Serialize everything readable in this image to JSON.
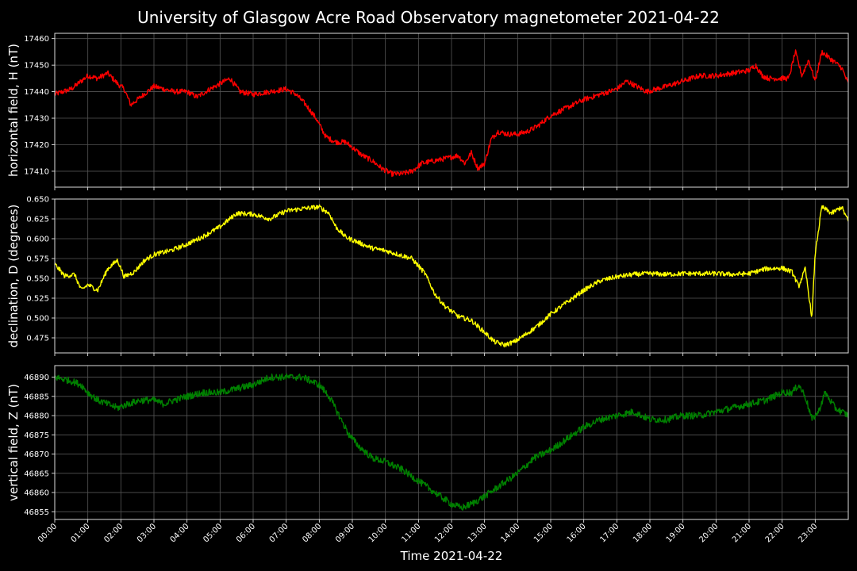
{
  "chart_data": {
    "title": "University of Glasgow Acre Road Observatory magnetometer 2021-04-22",
    "xlabel": "Time 2021-04-22",
    "x_ticks": [
      "00:00",
      "01:00",
      "02:00",
      "03:00",
      "04:00",
      "05:00",
      "06:00",
      "07:00",
      "08:00",
      "09:00",
      "10:00",
      "11:00",
      "12:00",
      "13:00",
      "14:00",
      "15:00",
      "16:00",
      "17:00",
      "18:00",
      "19:00",
      "20:00",
      "21:00",
      "22:00",
      "23:00"
    ],
    "grid": true,
    "panels": [
      {
        "type": "line",
        "ylabel": "horizontal field, H (nT)",
        "color": "#ff0000",
        "ylim": [
          17404,
          17462
        ],
        "y_ticks": [
          "17410",
          "17420",
          "17430",
          "17440",
          "17450",
          "17460"
        ],
        "noise": 1.0,
        "x": [
          0,
          0.5,
          1,
          1.3,
          1.6,
          1.9,
          2.1,
          2.3,
          2.6,
          3,
          3.3,
          3.6,
          4,
          4.3,
          4.7,
          5,
          5.3,
          5.6,
          6,
          6.5,
          7,
          7.3,
          7.6,
          7.9,
          8.2,
          8.5,
          8.8,
          9,
          9.3,
          9.6,
          9.9,
          10.2,
          10.5,
          10.8,
          11.1,
          11.5,
          11.9,
          12.2,
          12.4,
          12.6,
          12.8,
          13,
          13.2,
          13.4,
          13.7,
          14,
          14.3,
          14.6,
          15,
          15.5,
          16,
          16.5,
          17,
          17.3,
          17.6,
          17.9,
          18.2,
          18.5,
          19,
          19.5,
          20,
          20.5,
          21,
          21.2,
          21.4,
          21.6,
          21.9,
          22.2,
          22.4,
          22.6,
          22.8,
          23,
          23.2,
          23.5,
          23.8,
          24
        ],
        "y": [
          17439,
          17441,
          17446,
          17445,
          17447,
          17443,
          17441,
          17435,
          17438,
          17442,
          17441,
          17440,
          17440,
          17438,
          17441,
          17443,
          17445,
          17440,
          17439,
          17440,
          17441,
          17439,
          17435,
          17430,
          17423,
          17421,
          17421,
          17419,
          17416,
          17414,
          17411,
          17409,
          17409,
          17410,
          17413,
          17414,
          17415,
          17416,
          17413,
          17417,
          17411,
          17413,
          17422,
          17425,
          17424,
          17424,
          17425,
          17427,
          17431,
          17434,
          17437,
          17439,
          17441,
          17444,
          17442,
          17440,
          17441,
          17442,
          17444,
          17446,
          17446,
          17447,
          17448,
          17450,
          17446,
          17445,
          17445,
          17445,
          17455,
          17446,
          17452,
          17444,
          17455,
          17452,
          17449,
          17443
        ]
      },
      {
        "type": "line",
        "ylabel": "declination, D (degrees)",
        "color": "#ffff00",
        "ylim": [
          0.456,
          0.65
        ],
        "y_ticks": [
          "0.475",
          "0.500",
          "0.525",
          "0.550",
          "0.575",
          "0.600",
          "0.625",
          "0.650"
        ],
        "noise": 0.003,
        "x": [
          0,
          0.3,
          0.6,
          0.8,
          1,
          1.3,
          1.6,
          1.9,
          2.1,
          2.4,
          2.7,
          3,
          3.5,
          4,
          4.5,
          5,
          5.5,
          6,
          6.5,
          7,
          7.5,
          8,
          8.3,
          8.5,
          8.8,
          9.2,
          9.6,
          10,
          10.4,
          10.8,
          11.2,
          11.5,
          11.8,
          12.2,
          12.6,
          13,
          13.3,
          13.6,
          13.9,
          14.2,
          14.6,
          15,
          15.5,
          16,
          16.5,
          17,
          17.5,
          18,
          18.5,
          19,
          19.5,
          20,
          20.5,
          21,
          21.5,
          22,
          22.3,
          22.5,
          22.7,
          22.9,
          23,
          23.2,
          23.5,
          23.8,
          24
        ],
        "y": [
          0.568,
          0.553,
          0.555,
          0.535,
          0.542,
          0.535,
          0.562,
          0.573,
          0.552,
          0.558,
          0.572,
          0.58,
          0.585,
          0.593,
          0.603,
          0.615,
          0.632,
          0.631,
          0.625,
          0.635,
          0.638,
          0.64,
          0.632,
          0.615,
          0.602,
          0.595,
          0.588,
          0.585,
          0.58,
          0.575,
          0.556,
          0.53,
          0.515,
          0.502,
          0.497,
          0.482,
          0.47,
          0.466,
          0.47,
          0.478,
          0.49,
          0.505,
          0.52,
          0.535,
          0.547,
          0.552,
          0.555,
          0.556,
          0.555,
          0.556,
          0.556,
          0.556,
          0.555,
          0.556,
          0.562,
          0.563,
          0.558,
          0.54,
          0.562,
          0.5,
          0.582,
          0.64,
          0.632,
          0.64,
          0.622
        ]
      },
      {
        "type": "line",
        "ylabel": "vertical field, Z (nT)",
        "color": "#008000",
        "ylim": [
          46853,
          46893
        ],
        "y_ticks": [
          "46855",
          "46860",
          "46865",
          "46870",
          "46875",
          "46880",
          "46885",
          "46890"
        ],
        "noise": 0.9,
        "x": [
          0,
          0.5,
          0.8,
          1,
          1.3,
          1.6,
          1.9,
          2.2,
          2.6,
          3,
          3.3,
          3.6,
          4,
          4.5,
          5,
          5.5,
          6,
          6.5,
          7,
          7.5,
          8,
          8.3,
          8.6,
          8.9,
          9.2,
          9.6,
          10,
          10.5,
          11,
          11.5,
          12,
          12.3,
          12.6,
          13,
          13.5,
          14,
          14.5,
          15,
          15.5,
          16,
          16.5,
          17,
          17.5,
          18,
          18.5,
          19,
          19.5,
          20,
          20.5,
          21,
          21.5,
          22,
          22.3,
          22.5,
          22.7,
          22.9,
          23.1,
          23.3,
          23.6,
          24
        ],
        "y": [
          46890,
          46889,
          46888,
          46886,
          46884,
          46883,
          46882,
          46883,
          46884,
          46884,
          46883,
          46884,
          46885,
          46886,
          46886,
          46887,
          46888,
          46890,
          46890,
          46890,
          46888,
          46885,
          46880,
          46875,
          46872,
          46869,
          46868,
          46866,
          46863,
          46860,
          46857,
          46856,
          46857,
          46859,
          46862,
          46865,
          46869,
          46871,
          46874,
          46877,
          46879,
          46880,
          46881,
          46879,
          46879,
          46880,
          46880,
          46881,
          46882,
          46883,
          46884,
          46886,
          46886,
          46888,
          46885,
          46879,
          46881,
          46886,
          46882,
          46880
        ]
      }
    ]
  }
}
